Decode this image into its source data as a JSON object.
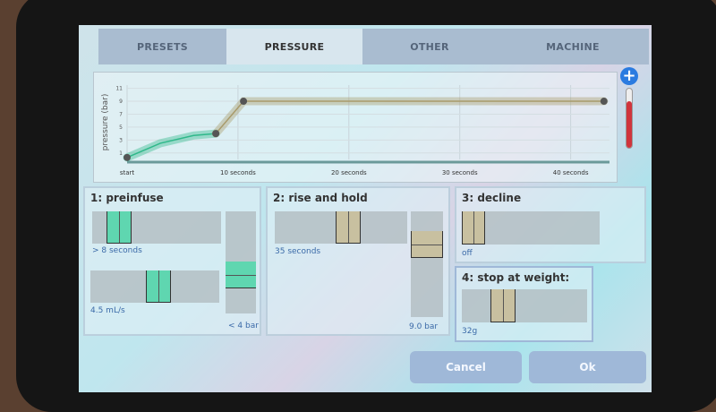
{
  "tabs": [
    {
      "label": "PRESETS"
    },
    {
      "label": "PRESSURE"
    },
    {
      "label": "OTHER"
    },
    {
      "label": "MACHINE"
    }
  ],
  "active_tab": "PRESSURE",
  "chart_data": {
    "type": "line",
    "ylabel": "pressure (bar)",
    "yticks": [
      "1",
      "3",
      "5",
      "7",
      "9",
      "11"
    ],
    "xticks": [
      {
        "x": 0,
        "label": "start"
      },
      {
        "x": 10,
        "label": "10 seconds"
      },
      {
        "x": 20,
        "label": "20 seconds"
      },
      {
        "x": 30,
        "label": "30 seconds"
      },
      {
        "x": 40,
        "label": "40 seconds"
      }
    ],
    "ylim": [
      0,
      11.5
    ],
    "xlim": [
      0,
      43.5
    ],
    "series": [
      {
        "color": "#2fb88a",
        "points": [
          [
            0,
            0.3
          ],
          [
            3,
            2.5
          ],
          [
            6,
            3.7
          ],
          [
            8,
            4
          ]
        ]
      },
      {
        "color": "#a89a6a",
        "points": [
          [
            8,
            4
          ],
          [
            9,
            6
          ],
          [
            10.5,
            9
          ],
          [
            43,
            9
          ]
        ]
      }
    ],
    "markers": [
      [
        0,
        0.3
      ],
      [
        8,
        4
      ],
      [
        10.5,
        9
      ],
      [
        43,
        9
      ]
    ],
    "grid": true
  },
  "side_slider": {
    "icon": "plus-icon",
    "color": "#d0343c",
    "accent": "#2a7be0"
  },
  "panels": {
    "preinfuse": {
      "title": "1: preinfuse",
      "time": "> 8 seconds",
      "flow": "4.5 mL/s",
      "pressure": "< 4 bar"
    },
    "rise": {
      "title": "2: rise and hold",
      "time": "35 seconds",
      "pressure": "9.0 bar"
    },
    "decline": {
      "title": "3: decline",
      "value": "off"
    },
    "weight": {
      "title": "4: stop at weight:",
      "value": "32g"
    }
  },
  "buttons": {
    "cancel": "Cancel",
    "ok": "Ok"
  },
  "colors": {
    "preinfuse": "#5fd6b0",
    "rise": "#c8c0a0"
  }
}
